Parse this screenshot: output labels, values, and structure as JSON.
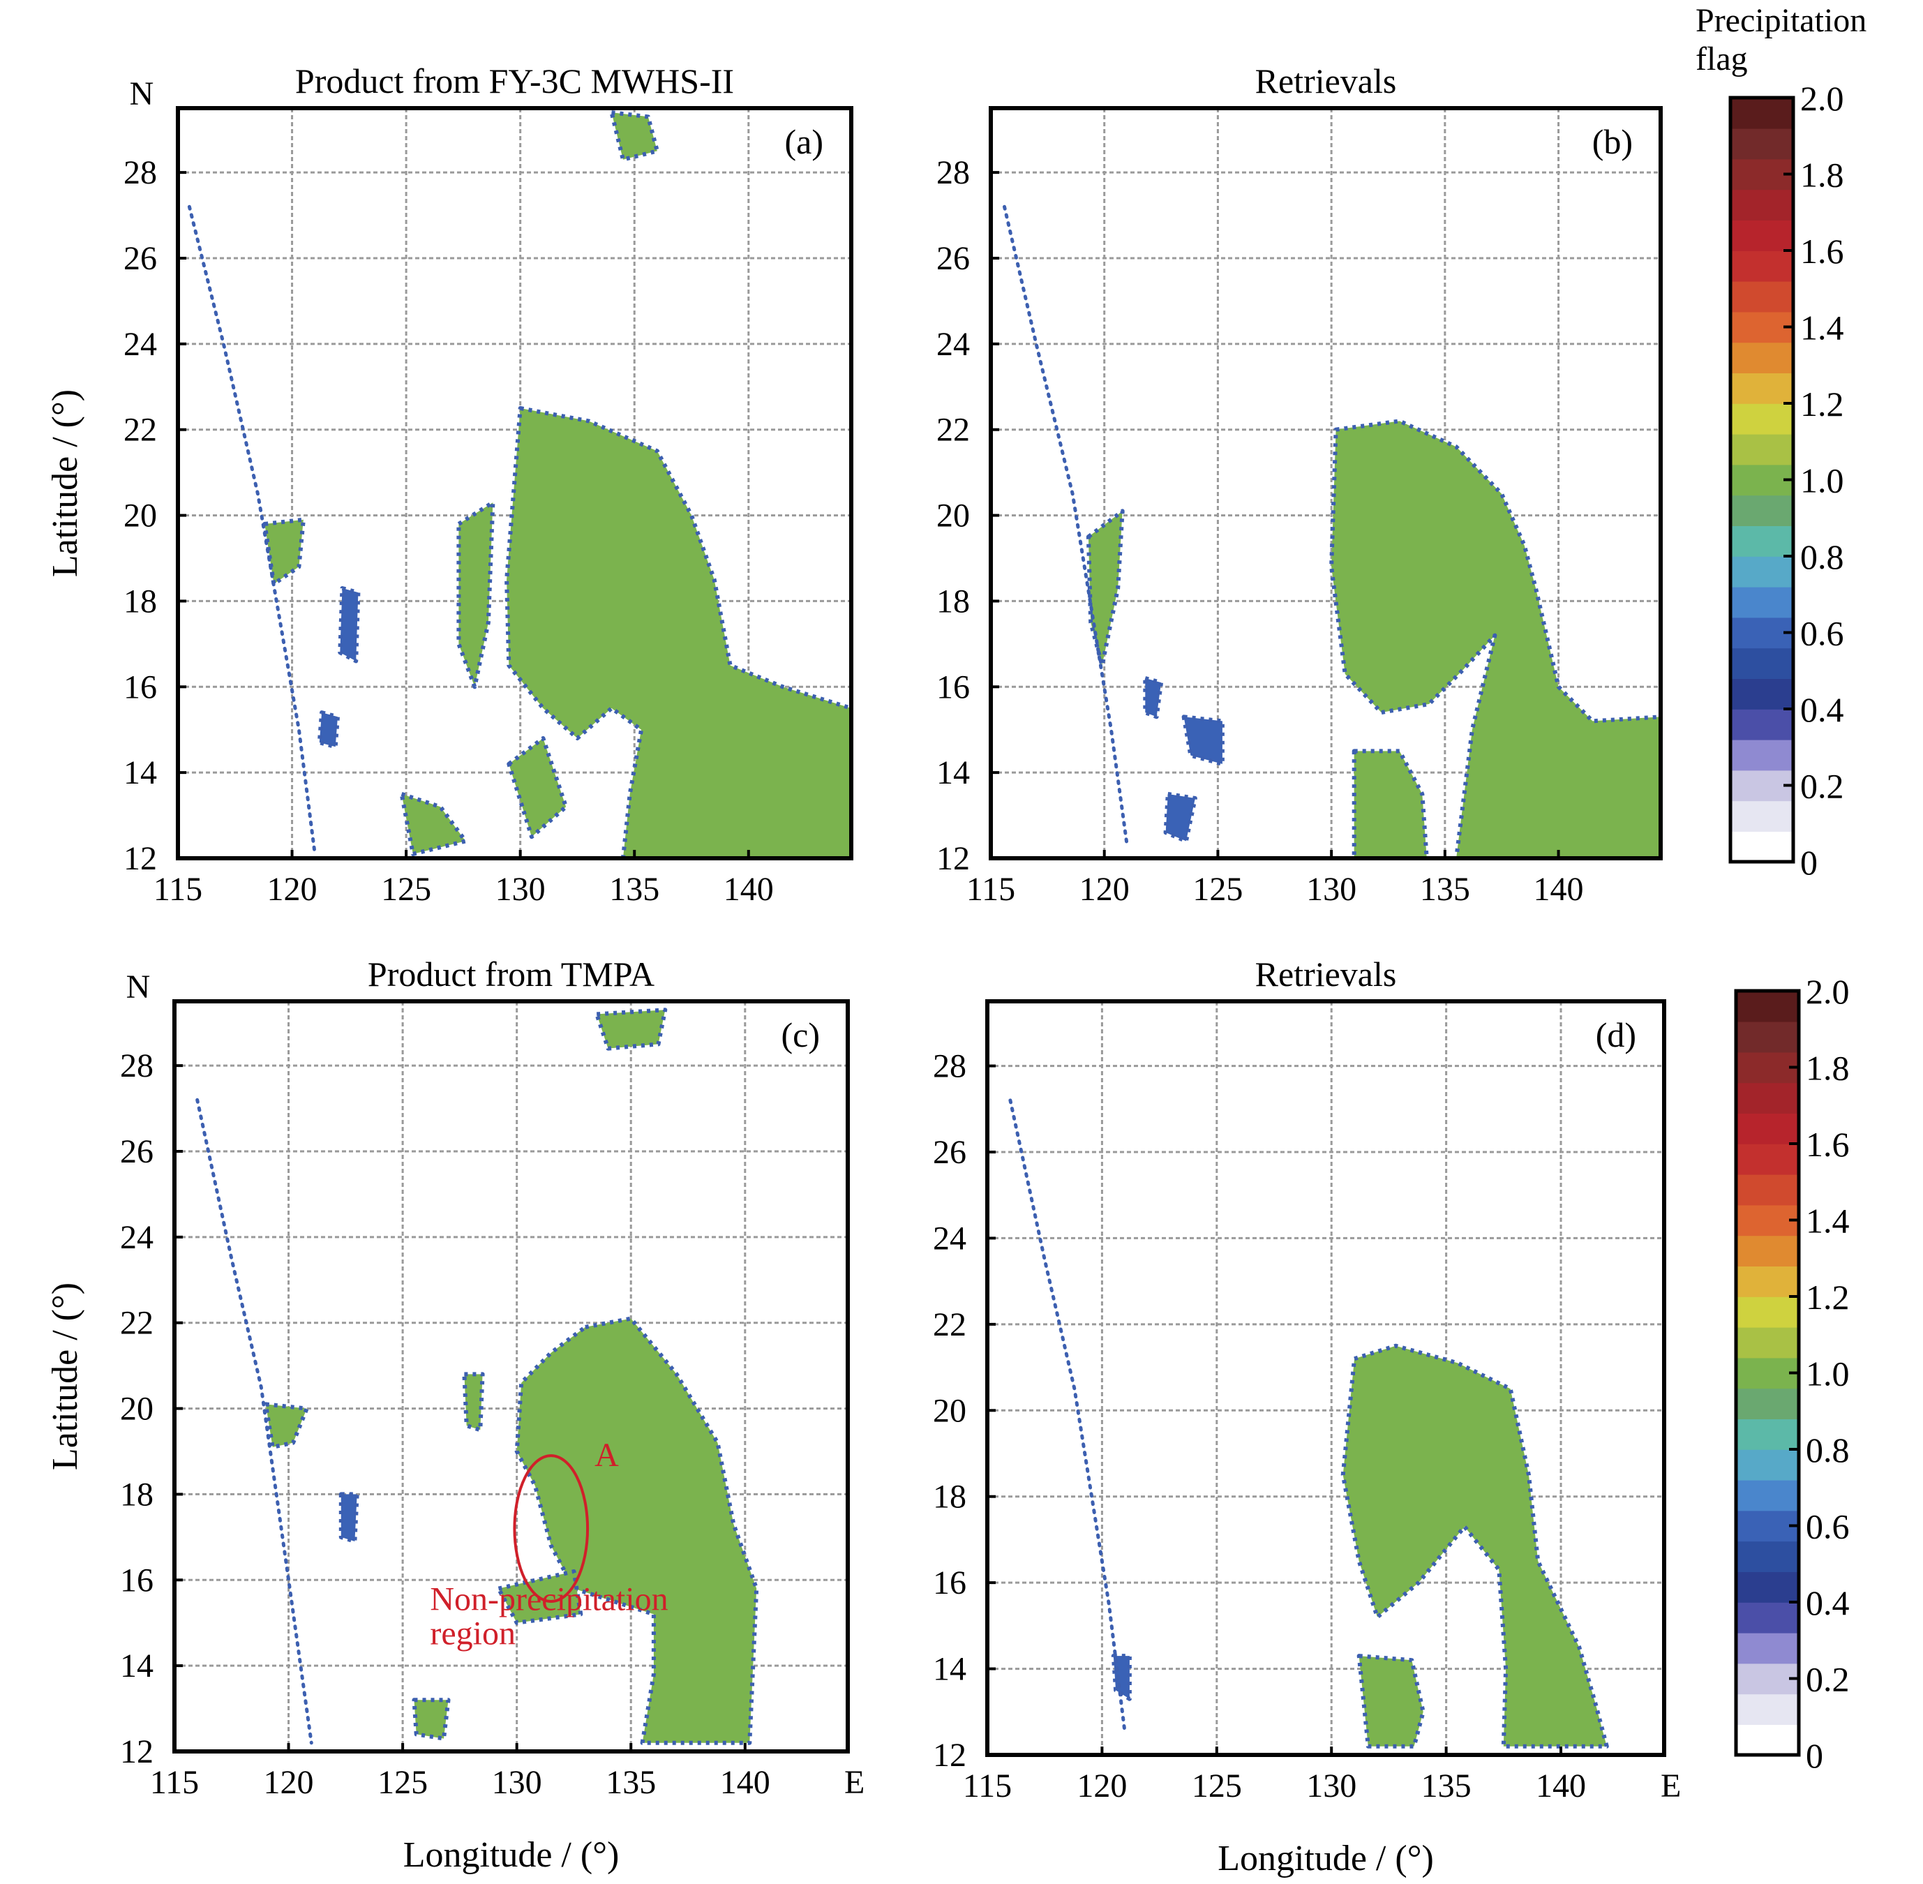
{
  "colors": {
    "precip": "#7ab648",
    "edge": "#3c5fb0",
    "grid": "#9a9a9a",
    "frame": "#000000",
    "annotation": "#d0202a",
    "colorbar": [
      "#ffffff",
      "#e6e6f2",
      "#c9c6e3",
      "#8f8ad1",
      "#4b4fa8",
      "#2b3e8f",
      "#2d4fa0",
      "#3a62b6",
      "#4a86cc",
      "#57a9c8",
      "#5cb9a8",
      "#6aa870",
      "#7bb34e",
      "#a9c145",
      "#cfd23f",
      "#e0b23a",
      "#e08a30",
      "#dd6430",
      "#d04a2e",
      "#c3302e",
      "#b7242c",
      "#a3242a",
      "#8c2a2a",
      "#722a2a",
      "#5a1c1c"
    ]
  },
  "chart_data": [
    {
      "type": "heatmap",
      "panel_label": "(a)",
      "title": "Product from FY-3C MWHS-II",
      "xlabel": "",
      "ylabel": "Latitude / (°)",
      "north_label": "N",
      "east_label": "",
      "xlim": [
        115,
        144.5
      ],
      "ylim": [
        12,
        29.5
      ],
      "xticks": [
        "115",
        "120",
        "125",
        "130",
        "135",
        "140"
      ],
      "yticks": [
        "12",
        "14",
        "16",
        "18",
        "20",
        "22",
        "24",
        "26",
        "28"
      ],
      "variable": "Precipitation flag",
      "regions": [
        {
          "value": 1.0,
          "outline": [
            [
              130,
              22.5
            ],
            [
              133,
              22.2
            ],
            [
              136,
              21.5
            ],
            [
              137.5,
              20
            ],
            [
              138.5,
              18.5
            ],
            [
              139.2,
              16.5
            ],
            [
              141.5,
              16
            ],
            [
              144.5,
              15.5
            ],
            [
              144.5,
              12
            ],
            [
              134.5,
              12
            ],
            [
              134.8,
              13.5
            ],
            [
              135.3,
              15
            ],
            [
              134,
              15.5
            ],
            [
              132.5,
              14.8
            ],
            [
              131,
              15.5
            ],
            [
              129.5,
              16.5
            ],
            [
              129.4,
              18.5
            ],
            [
              129.7,
              20.5
            ]
          ]
        },
        {
          "value": 1.0,
          "outline": [
            [
              134,
              29.4
            ],
            [
              135.6,
              29.3
            ],
            [
              136,
              28.5
            ],
            [
              134.5,
              28.3
            ]
          ]
        },
        {
          "value": 1.0,
          "outline": [
            [
              118.8,
              19.8
            ],
            [
              120.5,
              19.9
            ],
            [
              120.3,
              18.8
            ],
            [
              119.2,
              18.4
            ]
          ]
        },
        {
          "value": 1.0,
          "outline": [
            [
              127.3,
              19.8
            ],
            [
              128.8,
              20.3
            ],
            [
              128.6,
              17.5
            ],
            [
              128,
              16
            ],
            [
              127.3,
              17
            ]
          ]
        },
        {
          "value": 1.0,
          "outline": [
            [
              124.8,
              13.5
            ],
            [
              126.5,
              13.2
            ],
            [
              127.6,
              12.4
            ],
            [
              125.3,
              12.1
            ]
          ]
        },
        {
          "value": 1.0,
          "outline": [
            [
              129.5,
              14.2
            ],
            [
              131,
              14.8
            ],
            [
              132,
              13.2
            ],
            [
              130.5,
              12.5
            ]
          ]
        },
        {
          "value": 0.6,
          "outline": [
            [
              122.2,
              18.3
            ],
            [
              122.9,
              18.2
            ],
            [
              122.8,
              16.6
            ],
            [
              122.1,
              16.8
            ]
          ]
        },
        {
          "value": 0.6,
          "outline": [
            [
              121.3,
              15.4
            ],
            [
              122,
              15.3
            ],
            [
              121.9,
              14.6
            ],
            [
              121.2,
              14.7
            ]
          ]
        }
      ],
      "scan_edge": [
        [
          115.5,
          27.2
        ],
        [
          117,
          24
        ],
        [
          118.5,
          20.5
        ],
        [
          120.3,
          15
        ],
        [
          121,
          12.1
        ]
      ]
    },
    {
      "type": "heatmap",
      "panel_label": "(b)",
      "title": "Retrievals",
      "xlabel": "",
      "ylabel": "",
      "north_label": "",
      "east_label": "",
      "xlim": [
        115,
        144.5
      ],
      "ylim": [
        12,
        29.5
      ],
      "xticks": [
        "115",
        "120",
        "125",
        "130",
        "135",
        "140"
      ],
      "yticks": [
        "12",
        "14",
        "16",
        "18",
        "20",
        "22",
        "24",
        "26",
        "28"
      ],
      "variable": "Precipitation flag",
      "regions": [
        {
          "value": 1.0,
          "outline": [
            [
              130.2,
              22
            ],
            [
              133,
              22.2
            ],
            [
              135.5,
              21.6
            ],
            [
              137.5,
              20.5
            ],
            [
              138.5,
              19.3
            ],
            [
              139,
              18.3
            ],
            [
              140,
              16
            ],
            [
              141.5,
              15.2
            ],
            [
              144.5,
              15.3
            ],
            [
              144.5,
              12
            ],
            [
              135.5,
              12
            ],
            [
              136.2,
              15
            ],
            [
              137.2,
              17.2
            ],
            [
              135.8,
              16.4
            ],
            [
              134.3,
              15.6
            ],
            [
              132.2,
              15.4
            ],
            [
              130.6,
              16.3
            ],
            [
              130,
              18.8
            ]
          ]
        },
        {
          "value": 1.0,
          "outline": [
            [
              131,
              14.5
            ],
            [
              133,
              14.5
            ],
            [
              134,
              13.5
            ],
            [
              134.2,
              12
            ],
            [
              131,
              12
            ]
          ]
        },
        {
          "value": 1.0,
          "outline": [
            [
              119.3,
              19.5
            ],
            [
              120.8,
              20.1
            ],
            [
              120.6,
              18.3
            ],
            [
              119.9,
              16.5
            ],
            [
              119.4,
              17.5
            ]
          ]
        },
        {
          "value": 0.6,
          "outline": [
            [
              123.5,
              15.3
            ],
            [
              125.2,
              15.2
            ],
            [
              125.2,
              14.2
            ],
            [
              123.8,
              14.4
            ]
          ]
        },
        {
          "value": 0.6,
          "outline": [
            [
              122.8,
              13.5
            ],
            [
              124,
              13.4
            ],
            [
              123.6,
              12.4
            ],
            [
              122.7,
              12.6
            ]
          ]
        },
        {
          "value": 0.6,
          "outline": [
            [
              121.8,
              16.2
            ],
            [
              122.5,
              16.1
            ],
            [
              122.3,
              15.3
            ],
            [
              121.8,
              15.4
            ]
          ]
        }
      ],
      "scan_edge": [
        [
          115.6,
          27.2
        ],
        [
          117,
          24
        ],
        [
          118.6,
          20.5
        ],
        [
          120.3,
          15
        ],
        [
          121,
          12.3
        ]
      ]
    },
    {
      "type": "heatmap",
      "panel_label": "(c)",
      "title": "Product from TMPA",
      "xlabel": "Longitude / (°)",
      "ylabel": "Latitude / (°)",
      "north_label": "N",
      "east_label": "E",
      "xlim": [
        115,
        144.5
      ],
      "ylim": [
        12,
        29.5
      ],
      "xticks": [
        "115",
        "120",
        "125",
        "130",
        "135",
        "140"
      ],
      "yticks": [
        "12",
        "14",
        "16",
        "18",
        "20",
        "22",
        "24",
        "26",
        "28"
      ],
      "variable": "Precipitation flag",
      "regions": [
        {
          "value": 1.0,
          "outline": [
            [
              133,
              21.9
            ],
            [
              135,
              22.1
            ],
            [
              137,
              20.8
            ],
            [
              138.8,
              19.2
            ],
            [
              139.5,
              17.3
            ],
            [
              140.5,
              15.8
            ],
            [
              140.2,
              12.2
            ],
            [
              135.5,
              12.2
            ],
            [
              136,
              13.8
            ],
            [
              136,
              15.2
            ],
            [
              132.5,
              15.8
            ],
            [
              131.5,
              16.8
            ],
            [
              130.8,
              18.2
            ],
            [
              130,
              19
            ],
            [
              130.2,
              20.6
            ],
            [
              131.5,
              21.3
            ]
          ]
        },
        {
          "value": 1.0,
          "outline": [
            [
              129.2,
              15.8
            ],
            [
              132.5,
              16.2
            ],
            [
              132.8,
              15.2
            ],
            [
              130,
              15
            ]
          ]
        },
        {
          "value": 1.0,
          "outline": [
            [
              133.5,
              29.2
            ],
            [
              136.5,
              29.3
            ],
            [
              136.2,
              28.5
            ],
            [
              134,
              28.4
            ]
          ]
        },
        {
          "value": 1.0,
          "outline": [
            [
              119,
              20.1
            ],
            [
              120.8,
              20
            ],
            [
              120.2,
              19.2
            ],
            [
              119.3,
              19.1
            ]
          ]
        },
        {
          "value": 1.0,
          "outline": [
            [
              127.7,
              20.8
            ],
            [
              128.5,
              20.8
            ],
            [
              128.4,
              19.5
            ],
            [
              127.8,
              19.6
            ]
          ]
        },
        {
          "value": 1.0,
          "outline": [
            [
              125.5,
              13.2
            ],
            [
              127,
              13.2
            ],
            [
              126.8,
              12.3
            ],
            [
              125.6,
              12.4
            ]
          ]
        },
        {
          "value": 0.6,
          "outline": [
            [
              122.3,
              18
            ],
            [
              123,
              18
            ],
            [
              122.9,
              16.9
            ],
            [
              122.3,
              17
            ]
          ]
        }
      ],
      "scan_edge": [
        [
          116,
          27.2
        ],
        [
          117.5,
          23.5
        ],
        [
          118.8,
          20.5
        ],
        [
          120,
          16
        ],
        [
          121,
          12.2
        ]
      ],
      "annotation": {
        "label": "A",
        "note_line1": "Non-precipitation",
        "note_line2": "region",
        "ellipse": {
          "cx": 131.5,
          "cy": 17.2,
          "rx": 1.6,
          "ry": 1.7
        }
      }
    },
    {
      "type": "heatmap",
      "panel_label": "(d)",
      "title": "Retrievals",
      "xlabel": "Longitude / (°)",
      "ylabel": "",
      "north_label": "",
      "east_label": "E",
      "xlim": [
        115,
        144.5
      ],
      "ylim": [
        12,
        29.5
      ],
      "xticks": [
        "115",
        "120",
        "125",
        "130",
        "135",
        "140"
      ],
      "yticks": [
        "12",
        "14",
        "16",
        "18",
        "20",
        "22",
        "24",
        "26",
        "28"
      ],
      "variable": "Precipitation flag",
      "regions": [
        {
          "value": 1.0,
          "outline": [
            [
              131,
              21.2
            ],
            [
              132.8,
              21.5
            ],
            [
              135.5,
              21.1
            ],
            [
              137.8,
              20.5
            ],
            [
              138.6,
              18.5
            ],
            [
              139,
              16.5
            ],
            [
              140.8,
              14.5
            ],
            [
              141.5,
              13.2
            ],
            [
              142,
              12.2
            ],
            [
              137.5,
              12.2
            ],
            [
              137.6,
              14
            ],
            [
              137.3,
              16.3
            ],
            [
              135.8,
              17.3
            ],
            [
              133.8,
              16
            ],
            [
              132,
              15.2
            ],
            [
              131.2,
              16.5
            ],
            [
              130.5,
              18.5
            ]
          ]
        },
        {
          "value": 1.0,
          "outline": [
            [
              131.2,
              14.3
            ],
            [
              133.5,
              14.2
            ],
            [
              134,
              13
            ],
            [
              133.6,
              12.2
            ],
            [
              131.6,
              12.2
            ]
          ]
        },
        {
          "value": 0.6,
          "outline": [
            [
              120.5,
              14.3
            ],
            [
              121.2,
              14.3
            ],
            [
              121.2,
              13.3
            ],
            [
              120.6,
              13.5
            ]
          ]
        }
      ],
      "scan_edge": [
        [
          116,
          27.2
        ],
        [
          117.5,
          23.5
        ],
        [
          118.8,
          20.5
        ],
        [
          120.3,
          15.5
        ],
        [
          121,
          12.5
        ]
      ]
    }
  ],
  "colorbar": {
    "title_line1": "Precipitation",
    "title_line2": "flag",
    "vmin": 0,
    "vmax": 2.0,
    "ticks": [
      "0",
      "0.2",
      "0.4",
      "0.6",
      "0.8",
      "1.0",
      "1.2",
      "1.4",
      "1.6",
      "1.8",
      "2.0"
    ]
  }
}
